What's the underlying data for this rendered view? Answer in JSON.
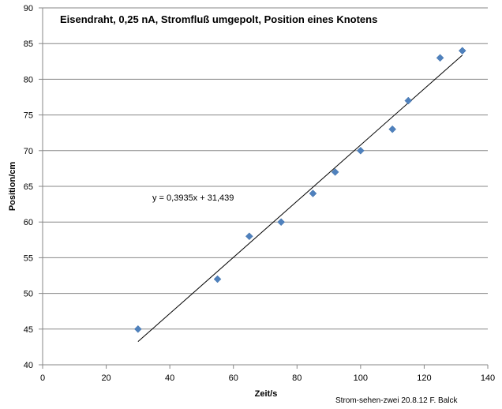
{
  "chart_data": {
    "type": "scatter",
    "title": "Eisendraht, 0,25  nA, Stromfluß  umgepolt,  Position eines Knotens",
    "xlabel": "Zeit/s",
    "ylabel": "Position/cm",
    "xlim": [
      0,
      140
    ],
    "ylim": [
      40,
      90
    ],
    "xticks": [
      0,
      20,
      40,
      60,
      80,
      100,
      120,
      140
    ],
    "yticks": [
      40,
      45,
      50,
      55,
      60,
      65,
      70,
      75,
      80,
      85,
      90
    ],
    "grid": "horizontal",
    "series": [
      {
        "x": [
          30,
          55,
          65,
          75,
          85,
          92,
          100,
          110,
          115,
          125,
          132
        ],
        "y": [
          45,
          52,
          58,
          60,
          64,
          67,
          70,
          73,
          77,
          83,
          84
        ],
        "color": "#4f81bd",
        "marker": "diamond"
      }
    ],
    "trendline": {
      "type": "linear",
      "slope": 0.3935,
      "intercept": 31.439,
      "x_range": [
        30,
        132
      ],
      "color": "#000000",
      "equation_label": "y = 0,3935x + 31,439"
    },
    "annotations": {
      "credit": "Strom-sehen-zwei 20.8.12 F. Balck"
    }
  }
}
